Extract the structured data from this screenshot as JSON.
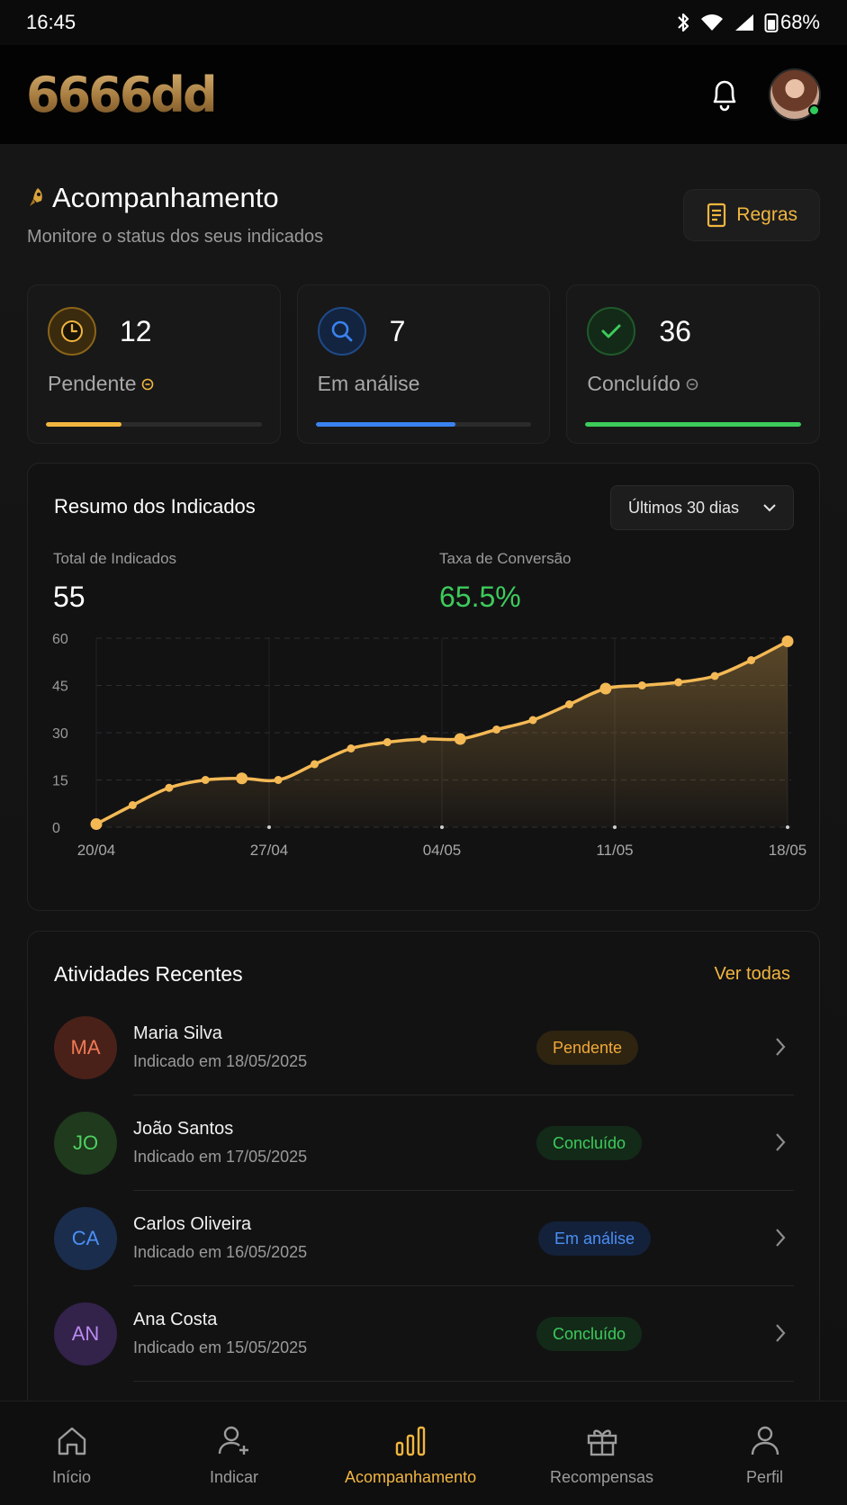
{
  "status_bar": {
    "time": "16:45",
    "battery": "68%"
  },
  "header": {
    "logo": "6666dd"
  },
  "page": {
    "title": "Acompanhamento",
    "subtitle": "Monitore o status dos seus indicados",
    "rules_label": "Regras"
  },
  "stats": [
    {
      "value": "12",
      "label": "Pendente",
      "color": "#f2b63f",
      "progress": 0.35
    },
    {
      "value": "7",
      "label": "Em análise",
      "color": "#3a82f0",
      "progress": 0.65
    },
    {
      "value": "36",
      "label": "Concluído",
      "color": "#3dcb5b",
      "progress": 1.0
    }
  ],
  "summary": {
    "title": "Resumo dos Indicados",
    "range": "Últimos 30 dias",
    "total_label": "Total de Indicados",
    "total_value": "55",
    "conversion_label": "Taxa de Conversão",
    "conversion_value": "65.5%"
  },
  "chart_data": {
    "type": "area",
    "x_ticks": [
      "20/04",
      "27/04",
      "04/05",
      "11/05",
      "18/05"
    ],
    "y_ticks": [
      "0",
      "15",
      "30",
      "45",
      "60"
    ],
    "ylim": [
      0,
      60
    ],
    "grid": true,
    "color": "#f4b955",
    "series": [
      {
        "values": [
          1,
          7,
          12.5,
          15,
          15.5,
          15,
          20,
          25,
          27,
          28,
          28,
          31,
          34,
          39,
          44,
          45,
          46,
          48,
          53,
          59
        ]
      }
    ]
  },
  "activity": {
    "title": "Atividades Recentes",
    "see_all": "Ver todas",
    "items": [
      {
        "initials": "MA",
        "name": "Maria Silva",
        "date": "Indicado em 18/05/2025",
        "status": "Pendente",
        "status_color": "#f2a93a",
        "status_bg": "#2e2410",
        "avatar_bg": "#4a2119",
        "avatar_fg": "#f07a55"
      },
      {
        "initials": "JO",
        "name": "João Santos",
        "date": "Indicado em 17/05/2025",
        "status": "Concluído",
        "status_color": "#3dcb5b",
        "status_bg": "#142a19",
        "avatar_bg": "#1f3a1c",
        "avatar_fg": "#4fd062"
      },
      {
        "initials": "CA",
        "name": "Carlos Oliveira",
        "date": "Indicado em 16/05/2025",
        "status": "Em análise",
        "status_color": "#4a90f5",
        "status_bg": "#14213a",
        "avatar_bg": "#1b2d4d",
        "avatar_fg": "#4a90f5"
      },
      {
        "initials": "AN",
        "name": "Ana Costa",
        "date": "Indicado em 15/05/2025",
        "status": "Concluído",
        "status_color": "#3dcb5b",
        "status_bg": "#142a19",
        "avatar_bg": "#33224a",
        "avatar_fg": "#b88af0"
      }
    ]
  },
  "nav": [
    {
      "label": "Início",
      "icon": "home-icon"
    },
    {
      "label": "Indicar",
      "icon": "user-plus-icon"
    },
    {
      "label": "Acompanhamento",
      "icon": "bar-chart-icon",
      "active": true
    },
    {
      "label": "Recompensas",
      "icon": "gift-icon"
    },
    {
      "label": "Perfil",
      "icon": "user-icon"
    }
  ]
}
